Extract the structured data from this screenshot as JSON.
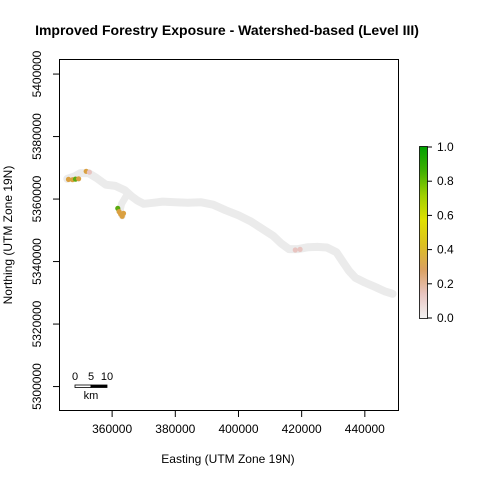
{
  "title": "Improved Forestry Exposure - Watershed-based (Level III)",
  "x_axis": {
    "label": "Easting (UTM Zone 19N)",
    "ticks": [
      360000,
      380000,
      400000,
      420000,
      440000
    ],
    "tick_labels": [
      "360000",
      "380000",
      "400000",
      "420000",
      "440000"
    ],
    "range": [
      343500,
      450500
    ]
  },
  "y_axis": {
    "label": "Northing (UTM Zone 19N)",
    "ticks": [
      5300000,
      5320000,
      5340000,
      5360000,
      5380000,
      5400000
    ],
    "tick_labels": [
      "5300000",
      "5320000",
      "5340000",
      "5360000",
      "5380000",
      "5400000"
    ],
    "range": [
      5292500,
      5404500
    ]
  },
  "legend": {
    "ticks": [
      0.0,
      0.2,
      0.4,
      0.6,
      0.8,
      1.0
    ],
    "tick_labels": [
      "0.0",
      "0.2",
      "0.4",
      "0.6",
      "0.8",
      "1.0"
    ],
    "range": [
      0,
      1
    ],
    "colors": [
      "#f2f2f2",
      "#e8c4c0",
      "#daa060",
      "#dcc020",
      "#e0e000",
      "#a0d000",
      "#40b000",
      "#00a000"
    ]
  },
  "scale_bar": {
    "labels": [
      "0",
      "5",
      "10"
    ],
    "unit": "km"
  },
  "colors": {
    "watershed": "#ebebeb",
    "low": "#e8c4c0",
    "mid": "#daa040",
    "high": "#5aaa10"
  },
  "watershed": {
    "path": [
      [
        345800,
        5366500
      ],
      [
        348000,
        5367200
      ],
      [
        350000,
        5368300
      ],
      [
        352500,
        5368300
      ],
      [
        355000,
        5366800
      ],
      [
        358000,
        5364600
      ],
      [
        361000,
        5364200
      ],
      [
        364000,
        5362800
      ],
      [
        366000,
        5361000
      ],
      [
        368000,
        5359500
      ],
      [
        370000,
        5358500
      ],
      [
        373000,
        5358800
      ],
      [
        376000,
        5359200
      ],
      [
        380000,
        5359000
      ],
      [
        384000,
        5358800
      ],
      [
        388000,
        5359000
      ],
      [
        392000,
        5358200
      ],
      [
        396000,
        5356400
      ],
      [
        400000,
        5354800
      ],
      [
        404000,
        5352800
      ],
      [
        408000,
        5350200
      ],
      [
        411000,
        5348200
      ],
      [
        413500,
        5345800
      ],
      [
        416000,
        5344000
      ],
      [
        419000,
        5344000
      ],
      [
        422000,
        5344600
      ],
      [
        425000,
        5344700
      ],
      [
        428000,
        5344500
      ],
      [
        431000,
        5343000
      ],
      [
        433000,
        5340000
      ],
      [
        435000,
        5337000
      ],
      [
        437000,
        5334800
      ],
      [
        440000,
        5333300
      ],
      [
        443000,
        5332000
      ],
      [
        446500,
        5330400
      ],
      [
        448800,
        5329700
      ]
    ],
    "spur": [
      [
        364500,
        5361000
      ],
      [
        363000,
        5358500
      ],
      [
        362500,
        5356200
      ],
      [
        363200,
        5354600
      ]
    ]
  },
  "exposure_points": [
    [
      346200,
      5366300,
      0.35
    ],
    [
      347500,
      5366200,
      0.4
    ],
    [
      348400,
      5366400,
      0.85
    ],
    [
      349400,
      5366500,
      0.35
    ],
    [
      351800,
      5368900,
      0.3
    ],
    [
      352800,
      5368600,
      0.1
    ],
    [
      361800,
      5357000,
      0.7
    ],
    [
      362200,
      5356000,
      0.35
    ],
    [
      362700,
      5355200,
      0.3
    ],
    [
      363200,
      5354500,
      0.28
    ],
    [
      363600,
      5355400,
      0.25
    ],
    [
      418000,
      5343700,
      0.12
    ],
    [
      419500,
      5343900,
      0.1
    ]
  ]
}
